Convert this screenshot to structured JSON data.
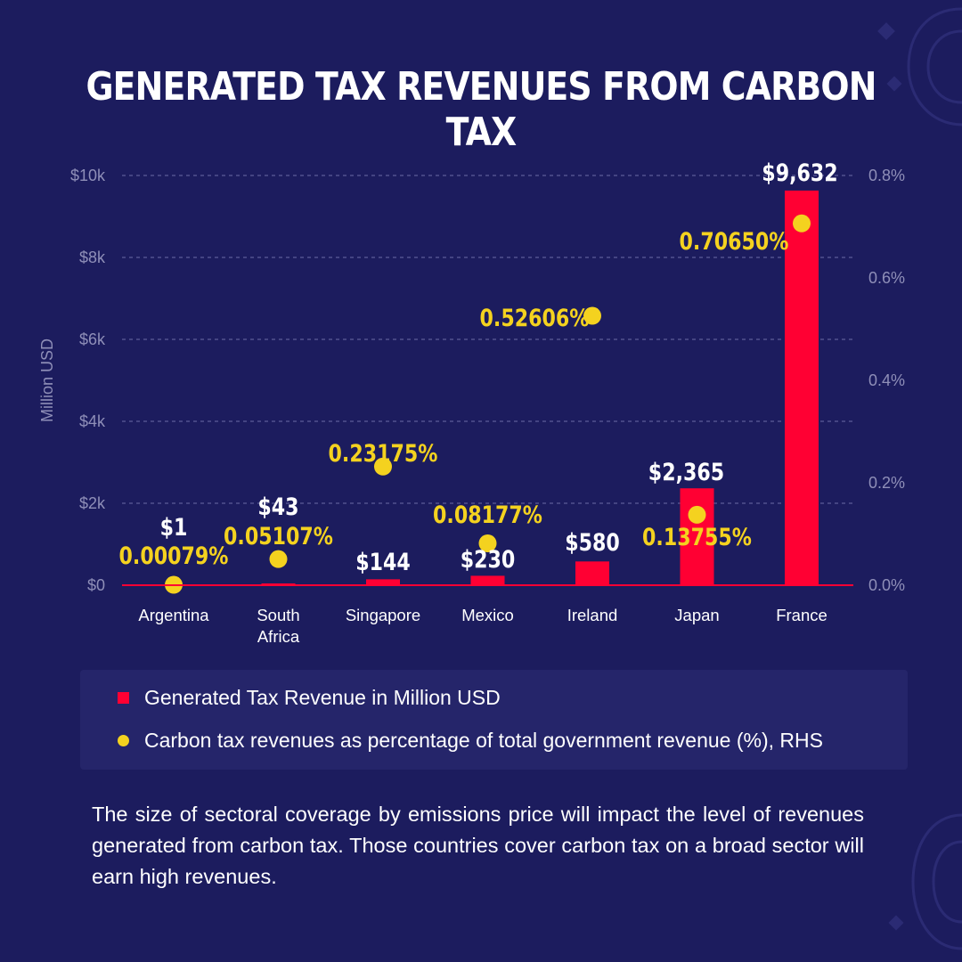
{
  "title": "GENERATED TAX REVENUES FROM CARBON TAX",
  "colors": {
    "background": "#1c1c5e",
    "bar": "#ff0033",
    "dot": "#f4d21f",
    "axis_text": "#8f8fb8",
    "label_text": "#ffffff",
    "pct_text": "#f4d21f"
  },
  "legend": {
    "bar_label": "Generated Tax Revenue in Million USD",
    "dot_label": "Carbon tax revenues as percentage of total government revenue (%), RHS"
  },
  "description": "The size of sectoral coverage by emissions price will impact the level of revenues generated from carbon tax. Those countries cover carbon tax on a broad sector will earn high revenues.",
  "chart_data": {
    "type": "bar",
    "categories": [
      "Argentina",
      "South Africa",
      "Singapore",
      "Mexico",
      "Ireland",
      "Japan",
      "France"
    ],
    "category_lines": [
      [
        "Argentina"
      ],
      [
        "South",
        "Africa"
      ],
      [
        "Singapore"
      ],
      [
        "Mexico"
      ],
      [
        "Ireland"
      ],
      [
        "Japan"
      ],
      [
        "France"
      ]
    ],
    "series": [
      {
        "name": "Generated Tax Revenue in Million USD",
        "type": "bar",
        "axis": "left",
        "values": [
          1,
          43,
          144,
          230,
          580,
          2365,
          9632
        ],
        "labels": [
          "$1",
          "$43",
          "$144",
          "$230",
          "$580",
          "$2,365",
          "$9,632"
        ]
      },
      {
        "name": "Carbon tax revenues as percentage of total government revenue (%), RHS",
        "type": "scatter",
        "axis": "right",
        "values": [
          0.00079,
          0.05107,
          0.23175,
          0.08177,
          0.52606,
          0.13755,
          0.7065
        ],
        "labels": [
          "0.00079%",
          "0.05107%",
          "0.23175%",
          "0.08177%",
          "0.52606%",
          "0.13755%",
          "0.70650%"
        ]
      }
    ],
    "ylabel": "Million USD",
    "ylim": [
      0,
      10000
    ],
    "y_ticks": [
      0,
      2000,
      4000,
      6000,
      8000,
      10000
    ],
    "y_tick_labels": [
      "$0",
      "$2k",
      "$4k",
      "$6k",
      "$8k",
      "$10k"
    ],
    "y2lim": [
      0,
      0.8
    ],
    "y2_ticks": [
      0,
      0.2,
      0.4,
      0.6,
      0.8
    ],
    "y2_tick_labels": [
      "0.0%",
      "0.2%",
      "0.4%",
      "0.6%",
      "0.8%"
    ],
    "grid": true
  }
}
